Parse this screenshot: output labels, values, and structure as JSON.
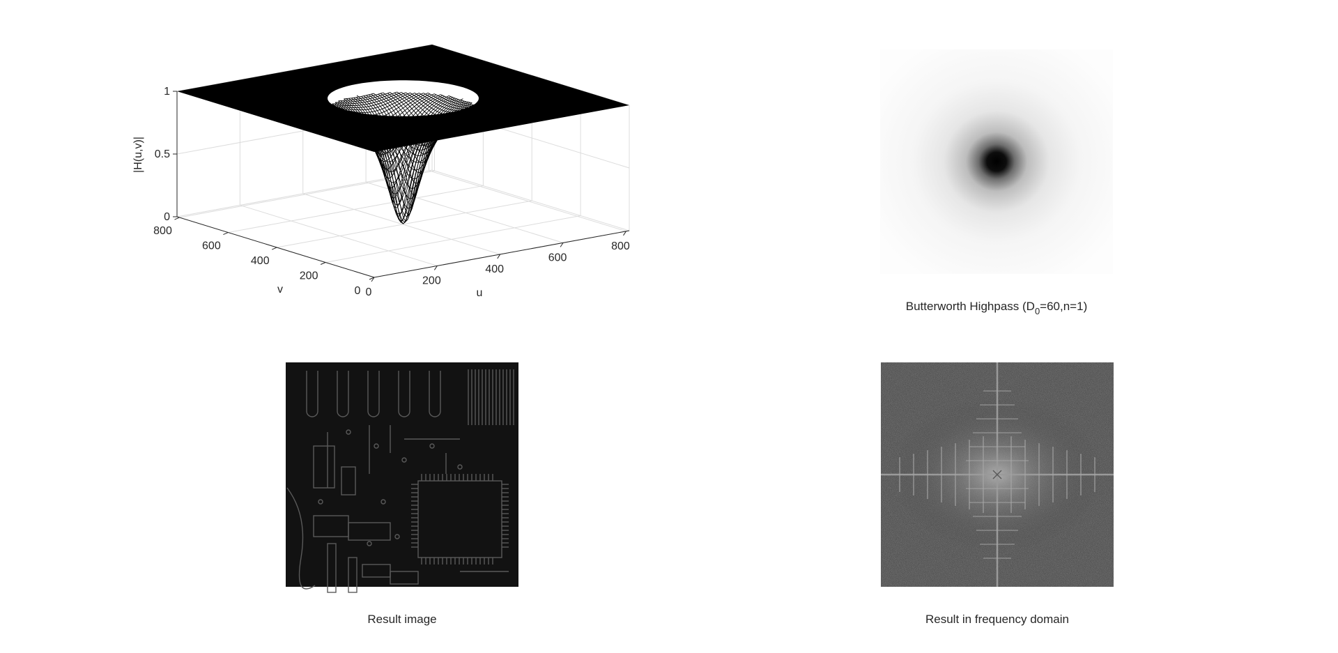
{
  "chart_data": [
    {
      "type": "surface",
      "panel": "top-left",
      "title": "",
      "xlabel": "u",
      "ylabel": "v",
      "zlabel": "|H(u,v)|",
      "x_ticks": [
        0,
        200,
        400,
        600,
        800
      ],
      "y_ticks": [
        0,
        200,
        400,
        600,
        800
      ],
      "z_ticks": [
        0,
        0.5,
        1
      ],
      "xlim": [
        0,
        810
      ],
      "ylim": [
        0,
        810
      ],
      "zlim": [
        0,
        1
      ],
      "grid": true,
      "surface_color": "#000000",
      "center": [
        405,
        405
      ],
      "min_value": 0,
      "plateau_value": 1
    },
    {
      "type": "image",
      "panel": "top-right",
      "title_main": "Butterworth Highpass (D",
      "title_sub": "0",
      "title_rest": "=60,n=1)",
      "description_colors": {
        "center": "#000000",
        "outer": "#ffffff"
      }
    },
    {
      "type": "image",
      "panel": "bottom-left",
      "title": "Result image",
      "background": "#121212"
    },
    {
      "type": "image",
      "panel": "bottom-right",
      "title": "Result in frequency domain",
      "background": "#3c3c3c"
    }
  ],
  "colors": {
    "figure_background": "#ffffff",
    "text": "#262626",
    "axis": "#262626",
    "grid": "#dcdcdc"
  }
}
